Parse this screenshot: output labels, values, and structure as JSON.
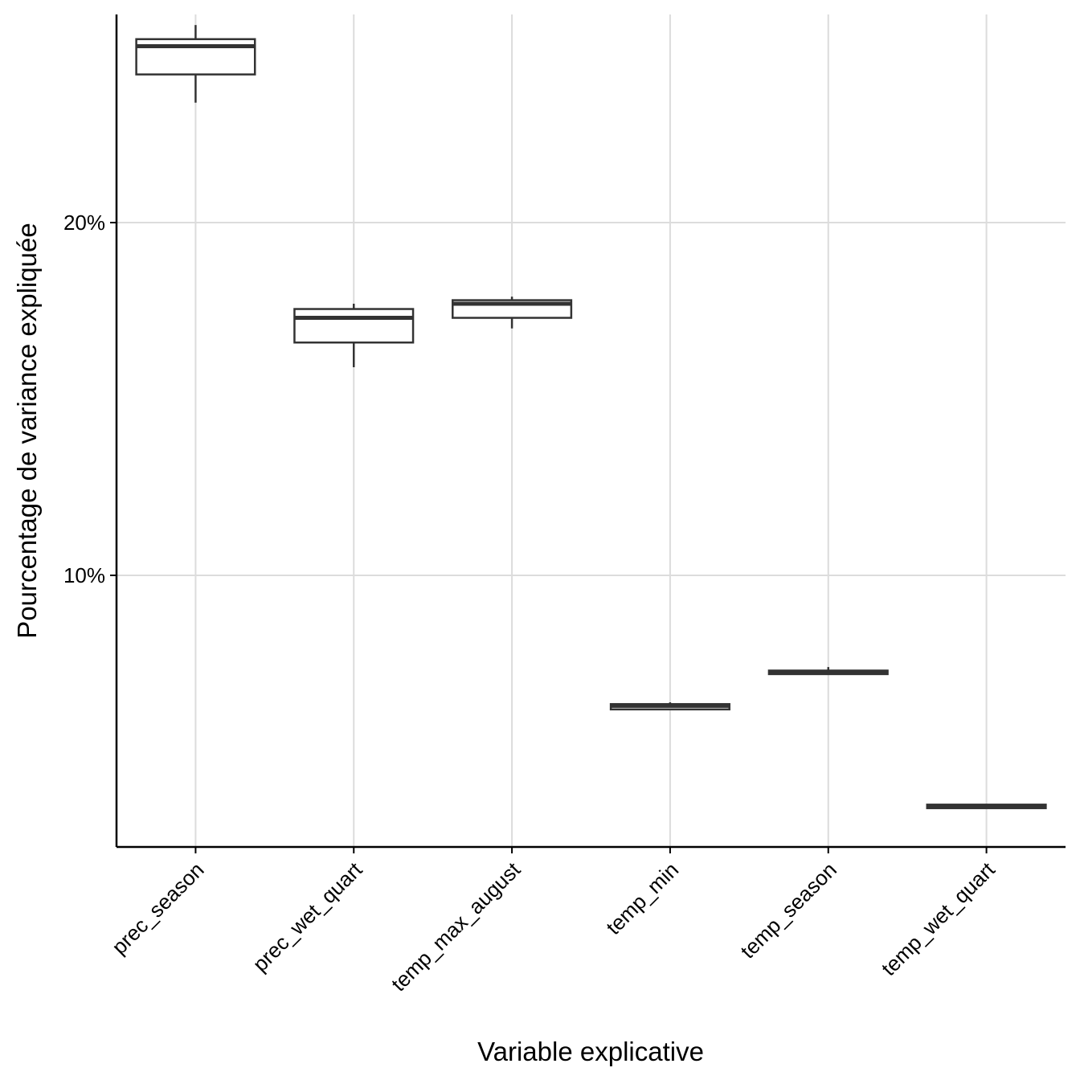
{
  "chart_data": {
    "type": "boxplot",
    "title": "",
    "xlabel": "Variable explicative",
    "ylabel": "Pourcentage de variance expliquée",
    "ylim": [
      2.3,
      25.9
    ],
    "y_ticks": [
      10,
      20
    ],
    "y_tick_labels": [
      "10%",
      "20%"
    ],
    "grid": true,
    "categories": [
      "prec_season",
      "prec_wet_quart",
      "temp_max_august",
      "temp_min",
      "temp_season",
      "temp_wet_quart"
    ],
    "boxes": [
      {
        "category": "prec_season",
        "min": 23.4,
        "q1": 24.2,
        "median": 25.0,
        "q3": 25.2,
        "max": 25.6
      },
      {
        "category": "prec_wet_quart",
        "min": 15.9,
        "q1": 16.6,
        "median": 17.3,
        "q3": 17.55,
        "max": 17.7
      },
      {
        "category": "temp_max_august",
        "min": 17.0,
        "q1": 17.3,
        "median": 17.7,
        "q3": 17.8,
        "max": 17.9
      },
      {
        "category": "temp_min",
        "min": 6.2,
        "q1": 6.2,
        "median": 6.3,
        "q3": 6.35,
        "max": 6.4
      },
      {
        "category": "temp_season",
        "min": 7.2,
        "q1": 7.2,
        "median": 7.25,
        "q3": 7.3,
        "max": 7.4
      },
      {
        "category": "temp_wet_quart",
        "min": 3.4,
        "q1": 3.4,
        "median": 3.45,
        "q3": 3.5,
        "max": 3.5
      }
    ]
  }
}
